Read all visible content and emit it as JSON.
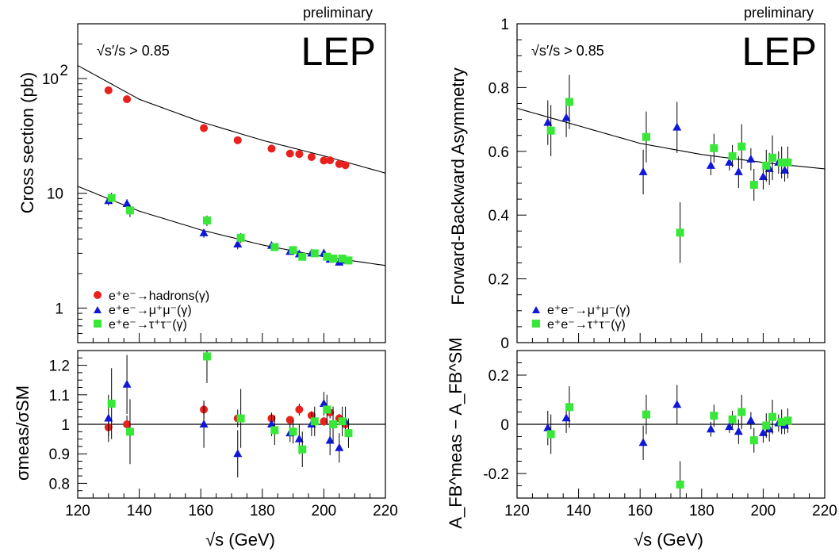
{
  "labels": {
    "preliminary": "preliminary",
    "lep": "LEP",
    "cut": "√s′/s > 0.85",
    "x_axis": "√s (GeV)",
    "y_cross": "Cross section (pb)",
    "y_afb": "Forward-Backward Asymmetry",
    "y_ratio_cross": "σmeas/σSM",
    "y_ratio_afb": "A_FB^meas − A_FB^SM",
    "legend_had": "e⁺e⁻→hadrons(γ)",
    "legend_mu": "e⁺e⁻→μ⁺μ⁻(γ)",
    "legend_tau": "e⁺e⁻→τ⁺τ⁻(γ)"
  },
  "colors": {
    "hadrons": "#e8201e",
    "mumu": "#1018d8",
    "tautau": "#38e838"
  },
  "chart_data": [
    {
      "type": "scatter",
      "panel": "cross-section",
      "xlim": [
        120,
        220
      ],
      "ylim": [
        0.5,
        300
      ],
      "yscale": "log",
      "xlabel": "√s (GeV)",
      "ylabel": "Cross section (pb)",
      "title": "LEP preliminary",
      "series": [
        {
          "name": "e⁺e⁻→hadrons(γ)",
          "marker": "circle",
          "x": [
            130,
            136,
            161,
            172,
            183,
            189,
            192,
            196,
            200,
            202,
            205,
            207
          ],
          "y": [
            79,
            66,
            37,
            29,
            24.5,
            22.2,
            22.0,
            20.7,
            19.3,
            19.4,
            18.0,
            17.6
          ],
          "err": [
            3,
            3,
            1.5,
            1.2,
            0.4,
            0.3,
            0.5,
            0.4,
            0.3,
            0.4,
            0.3,
            0.3
          ]
        },
        {
          "name": "e⁺e⁻→μ⁺μ⁻(γ)",
          "marker": "triangle",
          "x": [
            130,
            136,
            161,
            172,
            183,
            189,
            192,
            196,
            200,
            202,
            205,
            207
          ],
          "y": [
            8.6,
            8.1,
            4.5,
            3.6,
            3.5,
            3.1,
            2.95,
            3.0,
            3.0,
            2.65,
            2.5,
            2.6
          ],
          "err": [
            0.8,
            0.8,
            0.4,
            0.35,
            0.15,
            0.1,
            0.15,
            0.1,
            0.1,
            0.12,
            0.1,
            0.1
          ]
        },
        {
          "name": "e⁺e⁻→τ⁺τ⁻(γ)",
          "marker": "square",
          "x": [
            131,
            137,
            162,
            173,
            184,
            190,
            193,
            197,
            201,
            203,
            206,
            208
          ],
          "y": [
            9.1,
            7.1,
            5.8,
            4.1,
            3.4,
            3.2,
            2.8,
            3.0,
            2.8,
            2.7,
            2.7,
            2.6
          ],
          "err": [
            1.0,
            0.9,
            0.6,
            0.4,
            0.2,
            0.15,
            0.2,
            0.15,
            0.15,
            0.2,
            0.15,
            0.15
          ]
        }
      ],
      "curves": [
        {
          "x": [
            120,
            140,
            160,
            180,
            200,
            220
          ],
          "y": [
            130,
            66,
            42,
            29,
            21.2,
            15
          ]
        },
        {
          "x": [
            120,
            140,
            160,
            180,
            200,
            220
          ],
          "y": [
            11.5,
            7.0,
            4.8,
            3.55,
            2.8,
            2.35
          ]
        }
      ]
    },
    {
      "type": "scatter",
      "panel": "cross-section-ratio",
      "xlim": [
        120,
        220
      ],
      "ylim": [
        0.75,
        1.25
      ],
      "xlabel": "√s (GeV)",
      "ylabel": "σmeas/σSM",
      "yticks": [
        0.8,
        0.9,
        1,
        1.1,
        1.2
      ],
      "series": [
        {
          "name": "e⁺e⁻→hadrons(γ)",
          "marker": "circle",
          "x": [
            130,
            136,
            161,
            172,
            183,
            189,
            192,
            196,
            200,
            202,
            205,
            207
          ],
          "y": [
            0.99,
            1.0,
            1.05,
            1.02,
            1.02,
            1.015,
            1.05,
            1.03,
            1.01,
            1.04,
            1.02,
            1.0
          ],
          "err": [
            0.03,
            0.03,
            0.03,
            0.03,
            0.015,
            0.012,
            0.02,
            0.015,
            0.015,
            0.02,
            0.015,
            0.015
          ]
        },
        {
          "name": "e⁺e⁻→μ⁺μ⁻(γ)",
          "marker": "triangle",
          "x": [
            130,
            136,
            161,
            172,
            183,
            189,
            192,
            196,
            200,
            202,
            205,
            207
          ],
          "y": [
            1.02,
            1.135,
            1.0,
            0.9,
            1.0,
            0.97,
            0.95,
            1.0,
            1.07,
            0.945,
            0.92,
            1.01
          ],
          "err": [
            0.08,
            0.1,
            0.08,
            0.08,
            0.04,
            0.03,
            0.05,
            0.04,
            0.04,
            0.05,
            0.05,
            0.05
          ]
        },
        {
          "name": "e⁺e⁻→τ⁺τ⁻(γ)",
          "marker": "square",
          "x": [
            131,
            137,
            162,
            173,
            184,
            190,
            193,
            197,
            201,
            203,
            206,
            208
          ],
          "y": [
            1.07,
            0.975,
            1.23,
            1.02,
            0.98,
            0.975,
            0.915,
            1.01,
            1.05,
            1.0,
            1.01,
            0.97
          ],
          "err": [
            0.12,
            0.11,
            0.09,
            0.1,
            0.05,
            0.04,
            0.06,
            0.05,
            0.05,
            0.06,
            0.05,
            0.05
          ]
        }
      ],
      "reference_line": 1
    },
    {
      "type": "scatter",
      "panel": "forward-backward-asymmetry",
      "xlim": [
        120,
        220
      ],
      "ylim": [
        0,
        1
      ],
      "xlabel": "√s (GeV)",
      "ylabel": "Forward-Backward Asymmetry",
      "yticks": [
        0,
        0.2,
        0.4,
        0.6,
        0.8,
        1
      ],
      "series": [
        {
          "name": "e⁺e⁻→μ⁺μ⁻(γ)",
          "marker": "triangle",
          "x": [
            130,
            136,
            161,
            172,
            183,
            189,
            192,
            196,
            200,
            202,
            205,
            207
          ],
          "y": [
            0.69,
            0.705,
            0.535,
            0.675,
            0.555,
            0.565,
            0.535,
            0.575,
            0.52,
            0.545,
            0.565,
            0.54
          ],
          "err": [
            0.07,
            0.06,
            0.07,
            0.08,
            0.03,
            0.025,
            0.05,
            0.035,
            0.04,
            0.05,
            0.035,
            0.035
          ]
        },
        {
          "name": "e⁺e⁻→τ⁺τ⁻(γ)",
          "marker": "square",
          "x": [
            131,
            137,
            162,
            173,
            184,
            190,
            193,
            197,
            201,
            203,
            206,
            208
          ],
          "y": [
            0.665,
            0.755,
            0.645,
            0.345,
            0.61,
            0.585,
            0.615,
            0.495,
            0.555,
            0.58,
            0.565,
            0.565
          ],
          "err": [
            0.08,
            0.085,
            0.08,
            0.095,
            0.045,
            0.035,
            0.07,
            0.05,
            0.05,
            0.07,
            0.05,
            0.05
          ]
        }
      ],
      "curve": {
        "x": [
          120,
          140,
          160,
          180,
          200,
          220
        ],
        "y": [
          0.735,
          0.68,
          0.625,
          0.59,
          0.565,
          0.545
        ]
      }
    },
    {
      "type": "scatter",
      "panel": "asymmetry-difference",
      "xlim": [
        120,
        220
      ],
      "ylim": [
        -0.3,
        0.3
      ],
      "xlabel": "√s (GeV)",
      "ylabel": "A_FB^meas − A_FB^SM",
      "yticks": [
        -0.2,
        0,
        0.2
      ],
      "series": [
        {
          "name": "e⁺e⁻→μ⁺μ⁻(γ)",
          "marker": "triangle",
          "x": [
            130,
            136,
            161,
            172,
            183,
            189,
            192,
            196,
            200,
            202,
            205,
            207
          ],
          "y": [
            -0.015,
            0.025,
            -0.075,
            0.08,
            -0.02,
            -0.01,
            -0.03,
            0.015,
            -0.035,
            -0.02,
            0.005,
            -0.005
          ],
          "err": [
            0.07,
            0.06,
            0.07,
            0.08,
            0.03,
            0.025,
            0.05,
            0.035,
            0.04,
            0.05,
            0.035,
            0.035
          ]
        },
        {
          "name": "e⁺e⁻→τ⁺τ⁻(γ)",
          "marker": "square",
          "x": [
            131,
            137,
            162,
            173,
            184,
            190,
            193,
            197,
            201,
            203,
            206,
            208
          ],
          "y": [
            -0.04,
            0.07,
            0.04,
            -0.245,
            0.035,
            0.02,
            0.05,
            -0.065,
            -0.005,
            0.03,
            0.01,
            0.015
          ],
          "err": [
            0.08,
            0.085,
            0.08,
            0.095,
            0.045,
            0.035,
            0.07,
            0.05,
            0.05,
            0.07,
            0.05,
            0.05
          ]
        }
      ],
      "reference_line": 0
    }
  ]
}
